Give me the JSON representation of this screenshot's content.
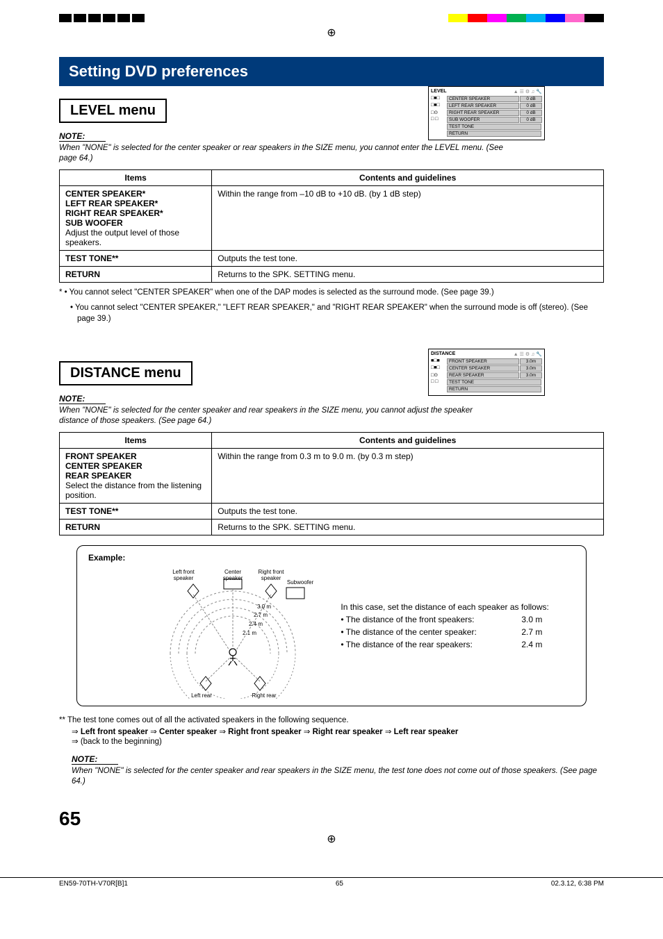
{
  "colorbar": {
    "colors": [
      "#ffff00",
      "#ff0000",
      "#ff00ff",
      "#00b050",
      "#00b0f0",
      "#0000ff",
      "#ff66cc",
      "#000000"
    ]
  },
  "crosshair": "⊕",
  "section_title": "Setting DVD preferences",
  "level": {
    "menu_title": "LEVEL menu",
    "note_label": "NOTE:",
    "note_text": "When \"NONE\" is selected for the center speaker or rear speakers in the SIZE menu, you cannot enter the LEVEL menu. (See page 64.)",
    "menubox": {
      "title": "LEVEL",
      "rows": [
        {
          "left": "□■□",
          "mid": "CENTER SPEAKER",
          "right": "0 dB"
        },
        {
          "left": "□■□",
          "mid": "LEFT REAR SPEAKER",
          "right": "0 dB"
        },
        {
          "left": "□⊙",
          "mid": "RIGHT REAR SPEAKER",
          "right": "0 dB"
        },
        {
          "left": "□  □",
          "mid": "SUB WOOFER",
          "right": "0 dB"
        },
        {
          "left": "",
          "mid": "TEST TONE",
          "right": ""
        },
        {
          "left": "",
          "mid": "RETURN",
          "right": ""
        }
      ]
    },
    "table": {
      "head": [
        "Items",
        "Contents and guidelines"
      ],
      "rows": [
        {
          "item_bold": "CENTER SPEAKER*\nLEFT REAR SPEAKER*\nRIGHT REAR SPEAKER*\nSUB WOOFER",
          "item_rest": "Adjust the output level of those speakers.",
          "content": "Within the range from –10 dB to +10 dB. (by 1 dB step)"
        },
        {
          "item_bold": "TEST TONE**",
          "item_rest": "",
          "content": "Outputs the test tone."
        },
        {
          "item_bold": "RETURN",
          "item_rest": "",
          "content": "Returns to the SPK. SETTING menu."
        }
      ]
    },
    "footnotes": [
      "*  • You cannot select \"CENTER SPEAKER\" when one of the DAP modes is selected as the surround mode. (See page 39.)",
      "   • You cannot select \"CENTER SPEAKER,\" \"LEFT REAR SPEAKER,\" and \"RIGHT REAR SPEAKER\" when the surround mode is off (stereo). (See page 39.)"
    ]
  },
  "distance": {
    "menu_title": "DISTANCE menu",
    "note_label": "NOTE:",
    "note_text": "When \"NONE\" is selected for the center speaker and rear speakers in the SIZE menu, you cannot adjust the speaker distance of those speakers. (See page 64.)",
    "menubox": {
      "title": "DISTANCE",
      "rows": [
        {
          "left": "■□■",
          "mid": "FRONT SPEAKER",
          "right": "3.0m"
        },
        {
          "left": "□■□",
          "mid": "CENTER SPEAKER",
          "right": "3.0m"
        },
        {
          "left": "□⊙",
          "mid": "REAR SPEAKER",
          "right": "3.0m"
        },
        {
          "left": "□  □",
          "mid": "TEST TONE",
          "right": ""
        },
        {
          "left": "",
          "mid": "RETURN",
          "right": ""
        }
      ]
    },
    "table": {
      "head": [
        "Items",
        "Contents and guidelines"
      ],
      "rows": [
        {
          "item_bold": "FRONT SPEAKER\nCENTER SPEAKER\nREAR SPEAKER",
          "item_rest": "Select the distance from the listening position.",
          "content": "Within the range from 0.3 m to 9.0 m. (by 0.3 m step)"
        },
        {
          "item_bold": "TEST TONE**",
          "item_rest": "",
          "content": "Outputs the test tone."
        },
        {
          "item_bold": "RETURN",
          "item_rest": "",
          "content": "Returns to the SPK. SETTING menu."
        }
      ]
    }
  },
  "example": {
    "label": "Example:",
    "labels": {
      "lf": "Left front\nspeaker",
      "c": "Center\nspeaker",
      "rf": "Right front\nspeaker",
      "sw": "Subwoofer",
      "lr": "Left rear\nspeaker",
      "rr": "Right rear\nspeaker",
      "d30": "3.0 m",
      "d27": "2.7 m",
      "d24": "2.4 m",
      "d21": "2.1 m"
    },
    "text_intro": "In this case, set the distance of each speaker as follows:",
    "rows": [
      {
        "label": "• The distance of the front speakers:",
        "value": "3.0 m"
      },
      {
        "label": "• The distance of the center speaker:",
        "value": "2.7 m"
      },
      {
        "label": "• The distance of the rear speakers:",
        "value": "2.4 m"
      }
    ]
  },
  "testtone": {
    "intro": "** The test tone comes out of all the activated speakers in the following sequence.",
    "seq_parts": [
      "⇒ ",
      "Left front speaker",
      " ⇒ ",
      "Center speaker",
      " ⇒ ",
      "Right front speaker",
      " ⇒ ",
      "Right rear speaker",
      " ⇒ ",
      "Left rear speaker"
    ],
    "seq_end": "⇒ (back to the beginning)",
    "note_label": "NOTE:",
    "note_text": "When \"NONE\" is selected for the center speaker and rear speakers in the SIZE menu, the test tone does not come out of those speakers. (See page 64.)"
  },
  "page_num": "65",
  "footer": {
    "left": "EN59-70TH-V70R[B]1",
    "mid": "65",
    "right": "02.3.12, 6:38 PM"
  }
}
